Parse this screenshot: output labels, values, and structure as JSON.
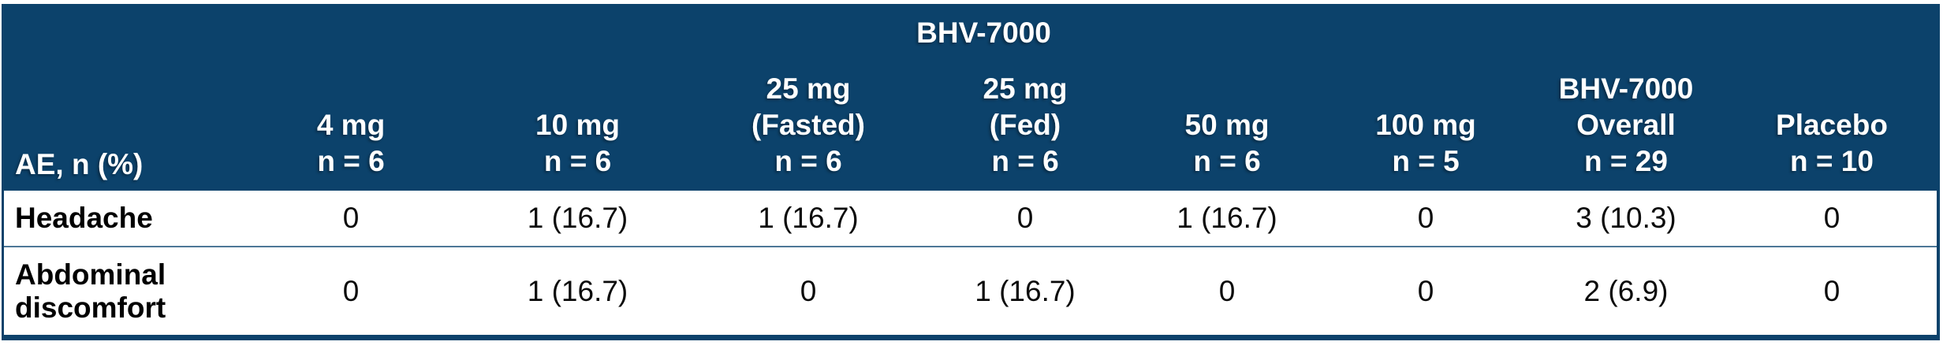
{
  "colors": {
    "header_bg": "#0C426B",
    "header_text": "#FFFFFF",
    "body_text": "#000000",
    "outer_border": "#0C426B",
    "row_divider": "#4D7797"
  },
  "table": {
    "group_header": "BHV-7000",
    "corner_label": "AE, n (%)",
    "columns": [
      {
        "lines": [
          "4 mg",
          "n = 6"
        ]
      },
      {
        "lines": [
          "10 mg",
          "n = 6"
        ]
      },
      {
        "lines": [
          "25 mg",
          "(Fasted)",
          "n = 6"
        ]
      },
      {
        "lines": [
          "25 mg",
          "(Fed)",
          "n = 6"
        ]
      },
      {
        "lines": [
          "50 mg",
          "n = 6"
        ]
      },
      {
        "lines": [
          "100 mg",
          "n = 5"
        ]
      },
      {
        "lines": [
          "BHV-7000",
          "Overall",
          "n = 29"
        ]
      },
      {
        "lines": [
          "Placebo",
          "n = 10"
        ]
      }
    ],
    "rows": [
      {
        "label": "Headache",
        "values": [
          "0",
          "1 (16.7)",
          "1 (16.7)",
          "0",
          "1 (16.7)",
          "0",
          "3 (10.3)",
          "0"
        ]
      },
      {
        "label": "Abdominal discomfort",
        "values": [
          "0",
          "1 (16.7)",
          "0",
          "1 (16.7)",
          "0",
          "0",
          "2 (6.9)",
          "0"
        ]
      }
    ]
  }
}
